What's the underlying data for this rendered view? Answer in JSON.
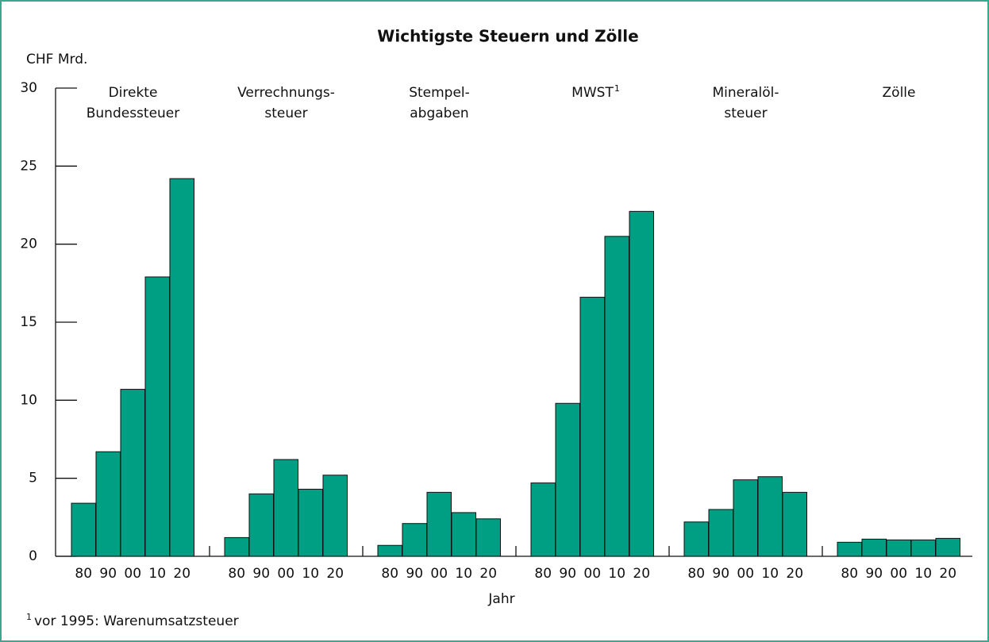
{
  "chart_data": {
    "type": "bar",
    "title": "Wichtigste Steuern und Zölle",
    "y_label": "CHF Mrd.",
    "x_label": "Jahr",
    "color": "#009e82",
    "ylim": [
      0,
      30
    ],
    "yticks": [
      0,
      5,
      10,
      15,
      20,
      25,
      30
    ],
    "groups": [
      {
        "name": [
          "Direkte",
          "Bundessteuer"
        ],
        "years": [
          "80",
          "90",
          "00",
          "10",
          "20"
        ],
        "values": [
          3.4,
          6.7,
          10.7,
          17.9,
          24.2
        ]
      },
      {
        "name": [
          "Verrechnungs-",
          "steuer"
        ],
        "years": [
          "80",
          "90",
          "00",
          "10",
          "20"
        ],
        "values": [
          1.2,
          4.0,
          6.2,
          4.3,
          5.2
        ]
      },
      {
        "name": [
          "Stempel-",
          "abgaben"
        ],
        "years": [
          "80",
          "90",
          "00",
          "10",
          "20"
        ],
        "values": [
          0.7,
          2.1,
          4.1,
          2.8,
          2.4
        ]
      },
      {
        "name": [
          "MWST"
        ],
        "years": [
          "80",
          "90",
          "00",
          "10",
          "20"
        ],
        "values": [
          4.7,
          9.8,
          16.6,
          20.5,
          22.1
        ]
      },
      {
        "name": [
          "Mineralöl-",
          "steuer"
        ],
        "years": [
          "80",
          "90",
          "00",
          "10",
          "20"
        ],
        "values": [
          2.2,
          3.0,
          4.9,
          5.1,
          4.1
        ]
      },
      {
        "name": [
          "Zölle"
        ],
        "years": [
          "80",
          "90",
          "00",
          "10",
          "20"
        ],
        "values": [
          0.9,
          1.1,
          1.05,
          1.05,
          1.15
        ]
      }
    ],
    "footnote": {
      "mark": "1",
      "text": "vor 1995: Warenumsatzsteuer"
    }
  }
}
